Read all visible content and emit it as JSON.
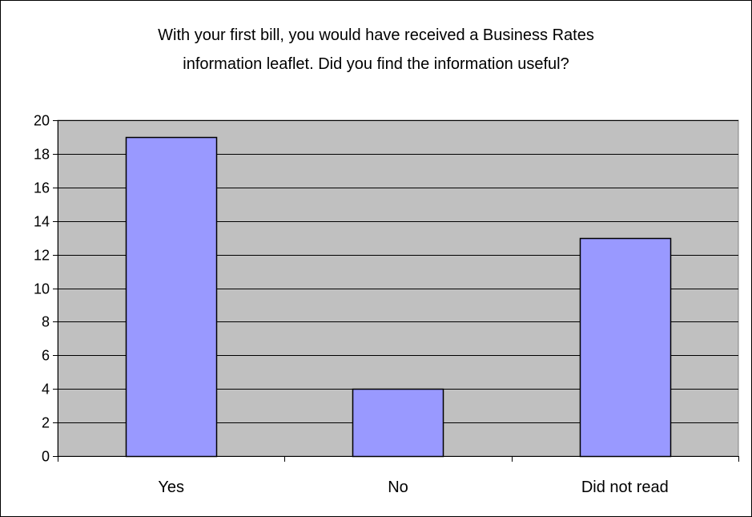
{
  "chart_data": {
    "type": "bar",
    "title_lines": [
      "With your first bill, you would have received a Business Rates",
      "information leaflet.  Did you find the information useful?"
    ],
    "categories": [
      "Yes",
      "No",
      "Did not read"
    ],
    "values": [
      19,
      4,
      13
    ],
    "ylim": [
      0,
      20
    ],
    "yticks": [
      "0",
      "2",
      "4",
      "6",
      "8",
      "10",
      "12",
      "14",
      "16",
      "18",
      "20"
    ],
    "grid": true,
    "legend": "none"
  },
  "colors": {
    "plot_area": "#c0c0c0",
    "bar_fill": "#9999ff",
    "bar_stroke": "#000000",
    "gridline": "#000000"
  }
}
